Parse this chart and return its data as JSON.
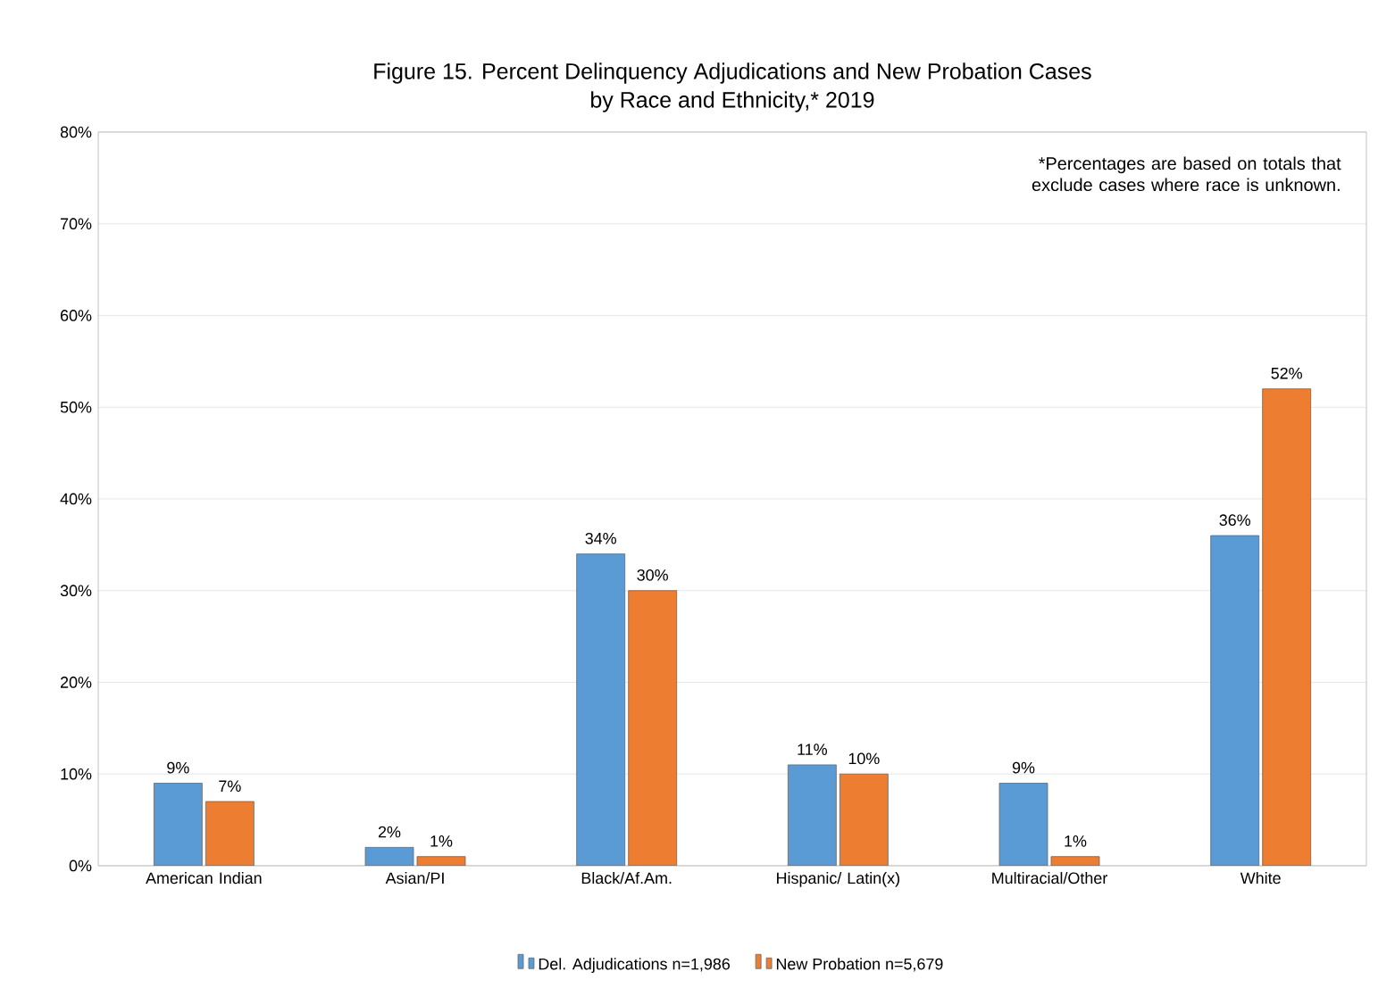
{
  "chart_data": {
    "type": "bar",
    "title": "Figure 15. Percent Delinquency Adjudications and New Probation Cases\nby Race and Ethnicity,* 2019",
    "categories": [
      "American Indian",
      "Asian/PI",
      "Black/Af.Am.",
      "Hispanic/ Latin(x)",
      "Multiracial/Other",
      "White"
    ],
    "series": [
      {
        "name": "Del. Adjudications n=1,986",
        "color": "#5b9bd5",
        "values": [
          9,
          2,
          34,
          11,
          9,
          36
        ],
        "value_labels": [
          "9%",
          "2%",
          "34%",
          "11%",
          "9%",
          "36%"
        ]
      },
      {
        "name": "New Probation n=5,679",
        "color": "#ed7d31",
        "values": [
          7,
          1,
          30,
          10,
          1,
          52
        ],
        "value_labels": [
          "7%",
          "1%",
          "30%",
          "10%",
          "1%",
          "52%"
        ]
      }
    ],
    "ylim": [
      0,
      80
    ],
    "yticks": [
      {
        "value": 0,
        "label": "0%"
      },
      {
        "value": 10,
        "label": "10%"
      },
      {
        "value": 20,
        "label": "20%"
      },
      {
        "value": 30,
        "label": "30%"
      },
      {
        "value": 40,
        "label": "40%"
      },
      {
        "value": 50,
        "label": "50%"
      },
      {
        "value": 60,
        "label": "60%"
      },
      {
        "value": 70,
        "label": "70%"
      },
      {
        "value": 80,
        "label": "80%"
      }
    ],
    "grid": "y",
    "legend": "bottom",
    "annotations": [
      "*Percentages are based on totals that exclude cases where race is unknown."
    ]
  }
}
